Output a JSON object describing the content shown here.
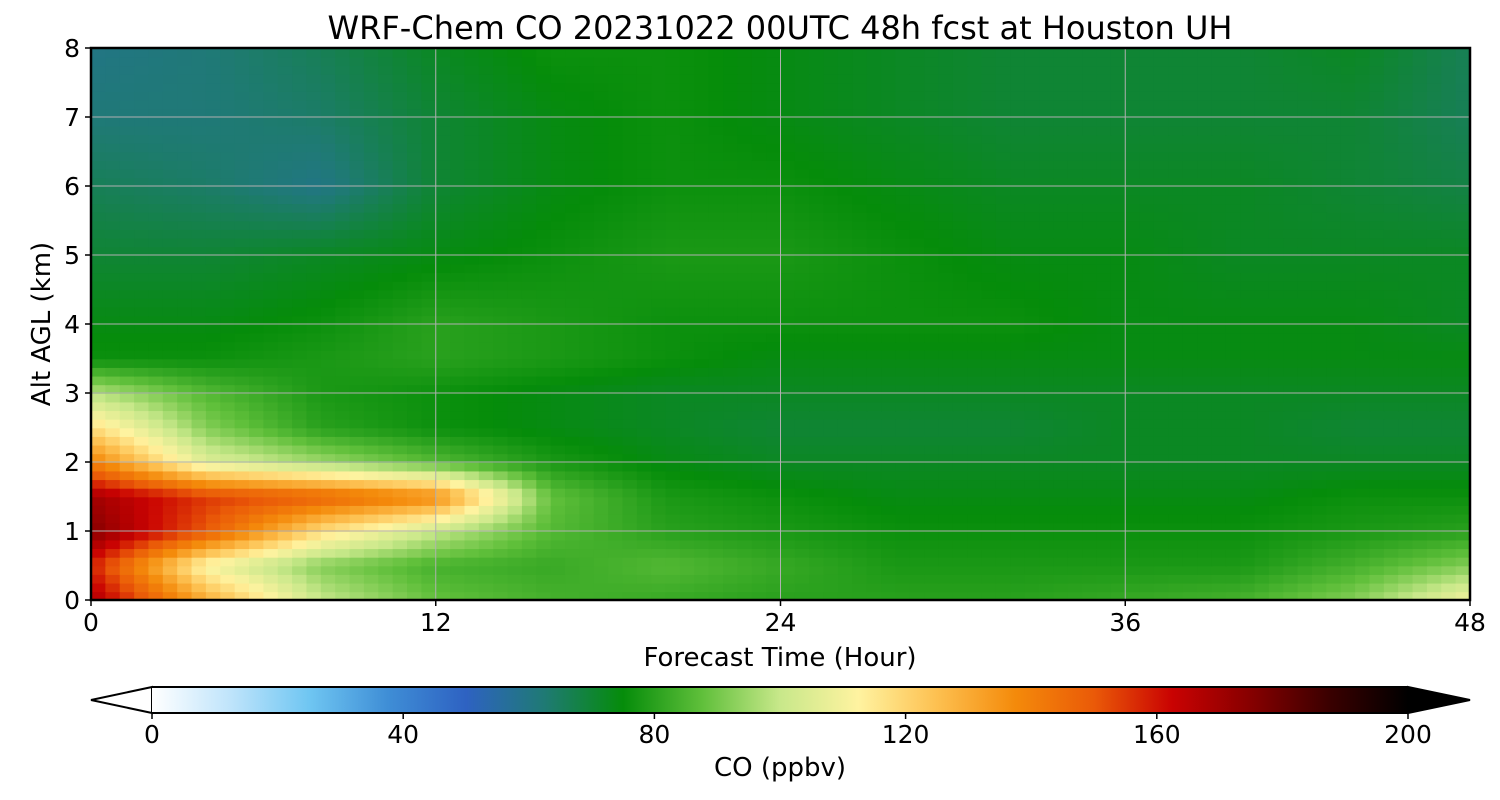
{
  "chart_data": {
    "type": "heatmap",
    "title": "WRF-Chem CO  20231022 00UTC 48h fcst at Houston UH",
    "xlabel": "Forecast Time (Hour)",
    "ylabel": "Alt AGL (km)",
    "xlim": [
      0,
      48
    ],
    "ylim": [
      0,
      8
    ],
    "xticks": [
      "0",
      "12",
      "24",
      "36",
      "48"
    ],
    "yticks": [
      "0",
      "1",
      "2",
      "3",
      "4",
      "5",
      "6",
      "7",
      "8"
    ],
    "grid": true,
    "colorbar": {
      "label": "CO  (ppbv)",
      "range": [
        0,
        200
      ],
      "orientation": "horizontal",
      "extend": "both",
      "ticks": [
        "0",
        "40",
        "80",
        "120",
        "160",
        "200"
      ],
      "colors": [
        "#ffffff",
        "#bfe4fb",
        "#6fc6f2",
        "#3f8ed6",
        "#2e62c2",
        "#1f7a74",
        "#058c0a",
        "#5fbf3a",
        "#c8e88a",
        "#fff3a0",
        "#fdc050",
        "#f48a0a",
        "#ea5a08",
        "#c90202",
        "#860000",
        "#3a0000",
        "#000000"
      ]
    },
    "grid_x_hours": [
      0,
      4,
      8,
      12,
      16,
      20,
      24,
      28,
      32,
      36,
      40,
      44,
      48
    ],
    "grid_y_km": [
      0,
      0.5,
      1,
      1.5,
      2,
      2.5,
      3,
      3.5,
      4,
      5,
      6,
      7,
      8
    ],
    "values_ppbv": [
      [
        168,
        130,
        100,
        88,
        84,
        82,
        80,
        80,
        80,
        82,
        84,
        92,
        110
      ],
      [
        158,
        110,
        92,
        84,
        82,
        86,
        82,
        78,
        78,
        78,
        78,
        84,
        92
      ],
      [
        175,
        150,
        118,
        100,
        86,
        80,
        78,
        76,
        76,
        76,
        76,
        78,
        80
      ],
      [
        170,
        155,
        148,
        138,
        88,
        78,
        76,
        74,
        74,
        74,
        74,
        76,
        76
      ],
      [
        140,
        105,
        95,
        86,
        78,
        74,
        72,
        72,
        72,
        72,
        72,
        72,
        72
      ],
      [
        118,
        92,
        80,
        76,
        74,
        72,
        70,
        70,
        70,
        72,
        72,
        70,
        70
      ],
      [
        98,
        86,
        78,
        76,
        74,
        72,
        72,
        72,
        72,
        72,
        72,
        72,
        72
      ],
      [
        76,
        76,
        78,
        80,
        78,
        76,
        74,
        74,
        74,
        74,
        74,
        74,
        74
      ],
      [
        74,
        74,
        76,
        80,
        78,
        76,
        76,
        76,
        76,
        74,
        74,
        74,
        72
      ],
      [
        70,
        70,
        72,
        74,
        76,
        78,
        78,
        76,
        74,
        74,
        72,
        72,
        72
      ],
      [
        66,
        64,
        60,
        70,
        74,
        76,
        76,
        74,
        72,
        72,
        72,
        70,
        68
      ],
      [
        62,
        62,
        64,
        70,
        74,
        76,
        74,
        72,
        70,
        70,
        70,
        70,
        66
      ],
      [
        60,
        62,
        66,
        72,
        76,
        76,
        74,
        72,
        70,
        70,
        70,
        72,
        66
      ]
    ]
  }
}
